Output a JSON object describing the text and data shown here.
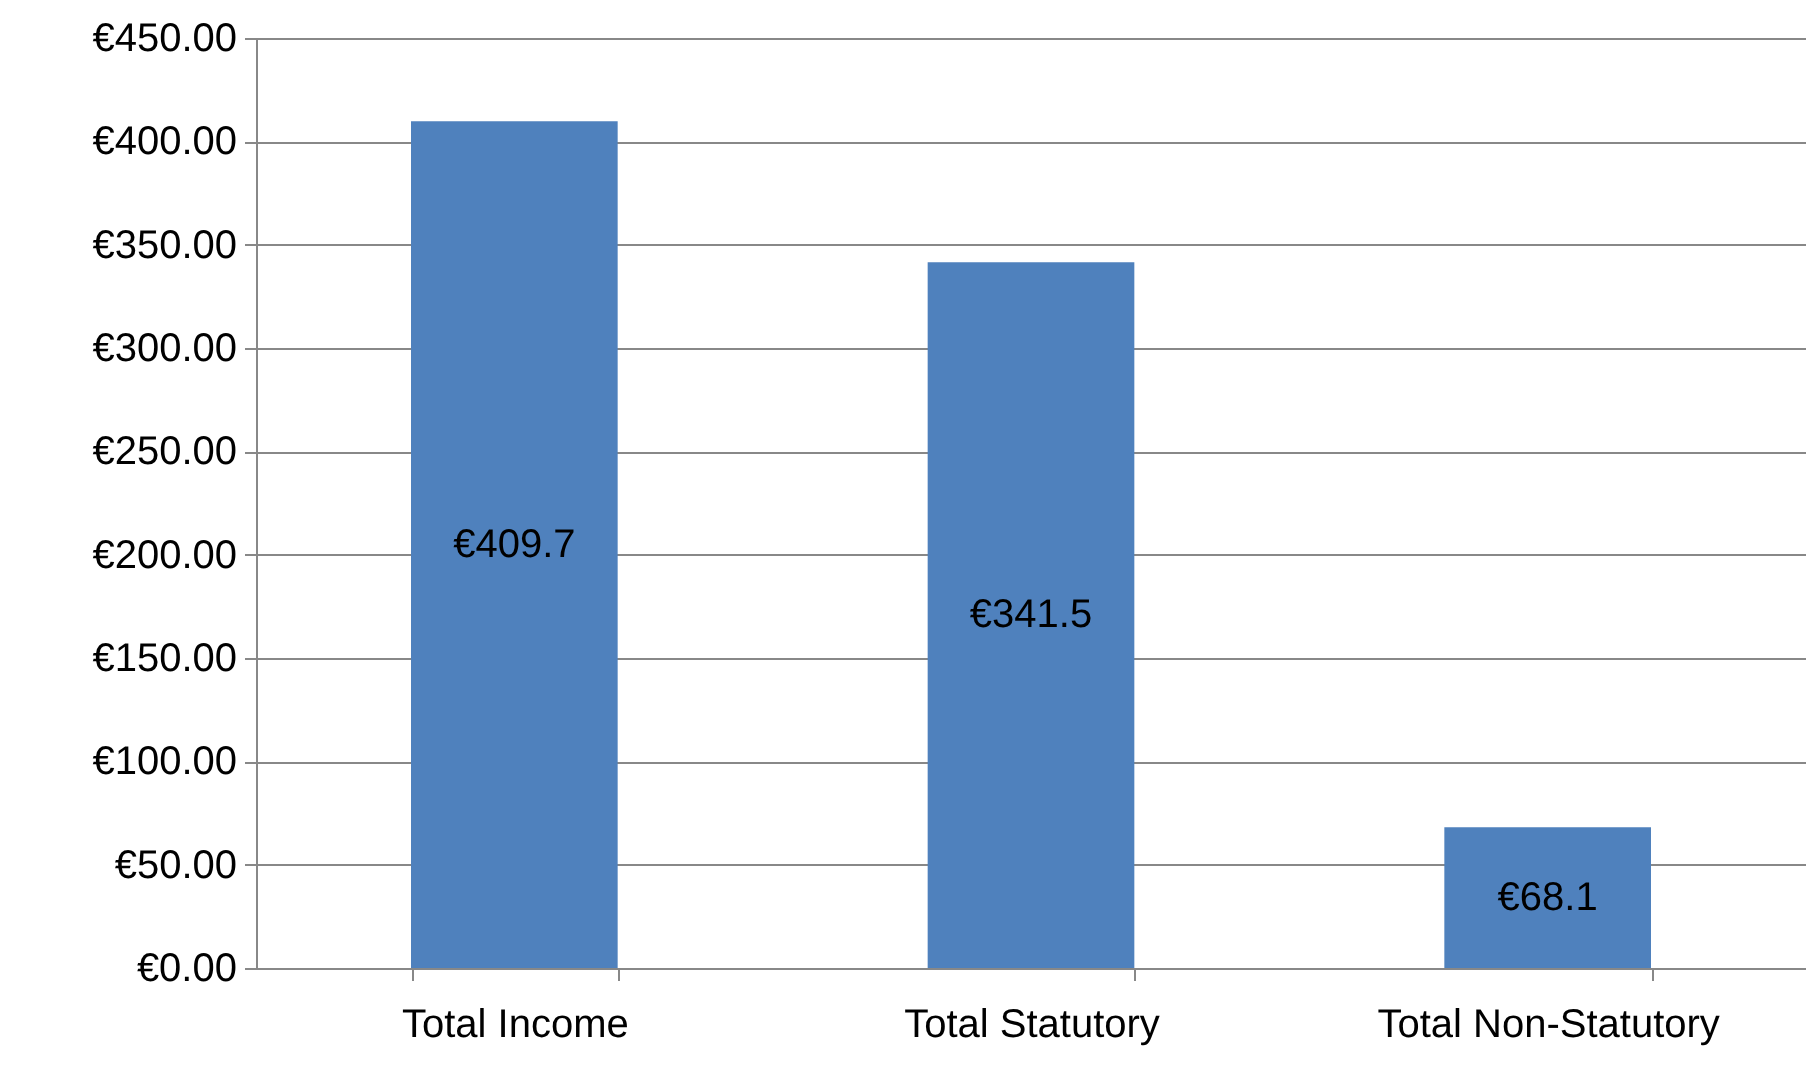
{
  "chart_data": {
    "type": "bar",
    "categories": [
      "Total Income",
      "Total Statutory",
      "Total Non-Statutory"
    ],
    "values": [
      409.7,
      341.5,
      68.1
    ],
    "color": "#4f81bd",
    "value_labels": [
      "€409.7",
      "€341.5",
      "€68.1"
    ],
    "ylim": [
      0,
      450
    ],
    "yticks": [
      {
        "value": 0,
        "label": "€0.00"
      },
      {
        "value": 50,
        "label": "€50.00"
      },
      {
        "value": 100,
        "label": "€100.00"
      },
      {
        "value": 150,
        "label": "€150.00"
      },
      {
        "value": 200,
        "label": "€200.00"
      },
      {
        "value": 250,
        "label": "€250.00"
      },
      {
        "value": 300,
        "label": "€300.00"
      },
      {
        "value": 350,
        "label": "€350.00"
      },
      {
        "value": 400,
        "label": "€400.00"
      },
      {
        "value": 450,
        "label": "€450.00"
      }
    ],
    "grid": "y"
  }
}
